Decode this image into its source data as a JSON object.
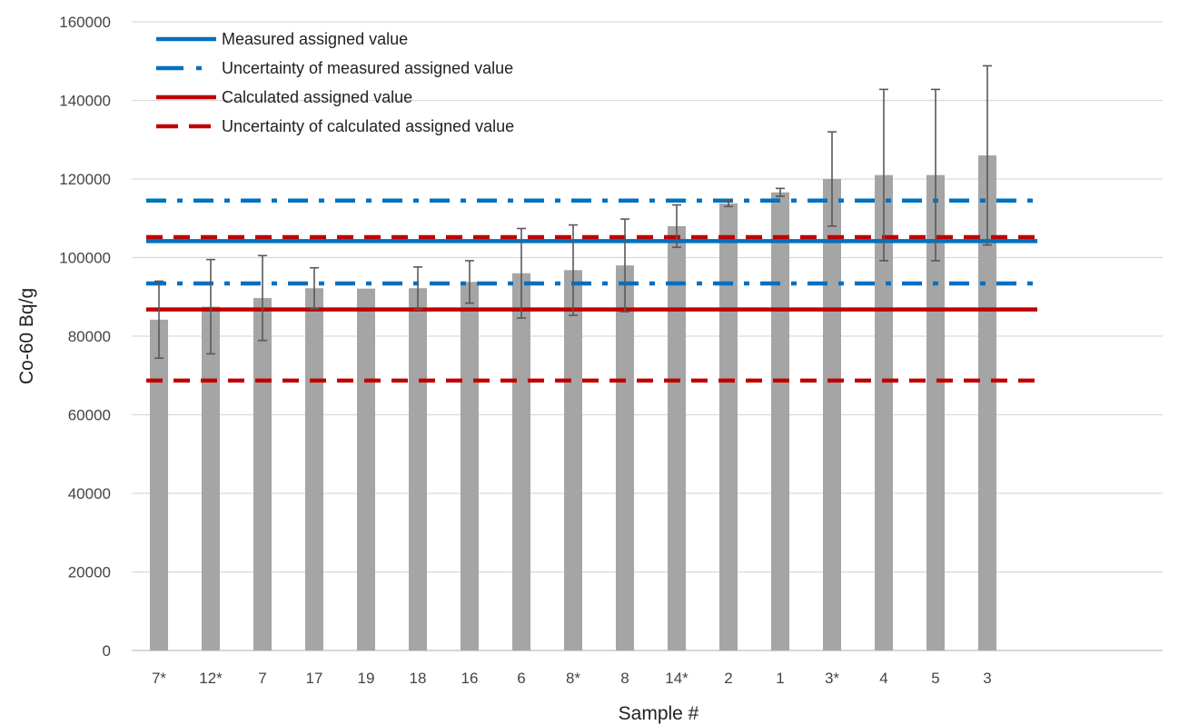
{
  "chart_data": {
    "type": "bar",
    "title": "",
    "xlabel": "Sample #",
    "ylabel": "Co-60 Bq/g",
    "ylim": [
      0,
      160000
    ],
    "yticks": [
      0,
      20000,
      40000,
      60000,
      80000,
      100000,
      120000,
      140000,
      160000
    ],
    "grid": "horizontal",
    "legend_position": "top-left",
    "categories": [
      "7*",
      "12*",
      "7",
      "17",
      "19",
      "18",
      "16",
      "6",
      "8*",
      "8",
      "14*",
      "2",
      "1",
      "3*",
      "4",
      "5",
      "3"
    ],
    "series": [
      {
        "values": [
          84200,
          87500,
          89700,
          92200,
          92100,
          92200,
          93800,
          96000,
          96800,
          98000,
          108000,
          113800,
          116600,
          120000,
          121000,
          121000,
          126000
        ],
        "error": [
          9800,
          12000,
          10800,
          5200,
          0,
          5400,
          5400,
          11400,
          11500,
          11800,
          5400,
          800,
          1000,
          12000,
          21800,
          21800,
          22800
        ],
        "color": "#a5a5a5"
      }
    ],
    "reference_lines": [
      {
        "name": "Measured assigned value",
        "y": 104200,
        "color": "#0070c0",
        "style": "solid"
      },
      {
        "name": "Uncertainty of measured assigned value",
        "y": [
          114500,
          93400
        ],
        "color": "#0070c0",
        "style": "dash-dot"
      },
      {
        "name": "Calculated assigned value",
        "y": 86800,
        "color": "#c00000",
        "style": "solid"
      },
      {
        "name": "Uncertainty of calculated assigned value",
        "y": [
          105200,
          68700
        ],
        "color": "#c00000",
        "style": "dash"
      }
    ]
  }
}
